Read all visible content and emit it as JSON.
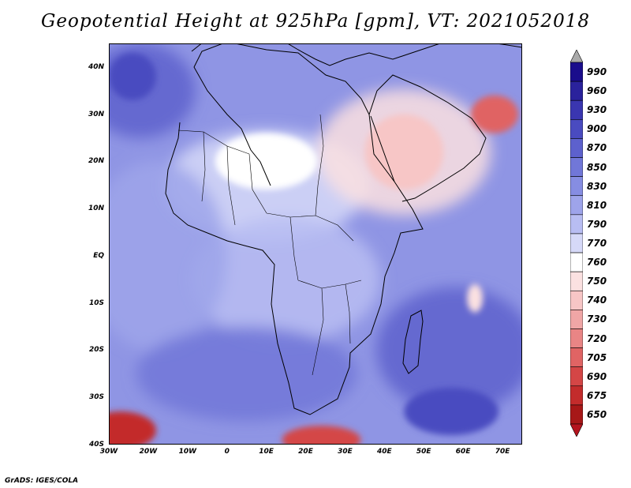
{
  "title": "Geopotential Height at 925hPa [gpm], VT: 2021052018",
  "credit": "GrADS: IGES/COLA",
  "map": {
    "variable": "Geopotential Height",
    "level": "925hPa",
    "units": "gpm",
    "valid_time": "2021052018",
    "lon_range": [
      -30,
      75
    ],
    "lat_range": [
      -40,
      45
    ],
    "background_color": "#8f95e4",
    "land_outline_color": "#000000",
    "lat_labels": [
      {
        "lat": 40,
        "text": "40N"
      },
      {
        "lat": 30,
        "text": "30N"
      },
      {
        "lat": 20,
        "text": "20N"
      },
      {
        "lat": 10,
        "text": "10N"
      },
      {
        "lat": 0,
        "text": "EQ"
      },
      {
        "lat": -10,
        "text": "10S"
      },
      {
        "lat": -20,
        "text": "20S"
      },
      {
        "lat": -30,
        "text": "30S"
      },
      {
        "lat": -40,
        "text": "40S"
      }
    ],
    "lon_labels": [
      {
        "lon": -30,
        "text": "30W"
      },
      {
        "lon": -20,
        "text": "20W"
      },
      {
        "lon": -10,
        "text": "10W"
      },
      {
        "lon": 0,
        "text": "0"
      },
      {
        "lon": 10,
        "text": "10E"
      },
      {
        "lon": 20,
        "text": "20E"
      },
      {
        "lon": 30,
        "text": "30E"
      },
      {
        "lon": 40,
        "text": "40E"
      },
      {
        "lon": 50,
        "text": "50E"
      },
      {
        "lon": 60,
        "text": "60E"
      },
      {
        "lon": 70,
        "text": "70E"
      }
    ],
    "features": [
      {
        "name": "low-height-south-atlantic",
        "level": 675,
        "lon": -27,
        "lat": -37,
        "rx": 9,
        "ry": 4
      },
      {
        "name": "low-height-south-africa-coast",
        "level": 690,
        "lon": 24,
        "lat": -39,
        "rx": 10,
        "ry": 3
      },
      {
        "name": "high-height-southwest-indian",
        "level": 900,
        "lon": 57,
        "lat": -33,
        "rx": 12,
        "ry": 5
      },
      {
        "name": "high-height-north-atlantic",
        "level": 900,
        "lon": -24,
        "lat": 38,
        "rx": 6,
        "ry": 5
      },
      {
        "name": "low-height-arabia",
        "level": 740,
        "lon": 45,
        "lat": 22,
        "rx": 10,
        "ry": 8
      },
      {
        "name": "low-height-iran-pakistan",
        "level": 705,
        "lon": 68,
        "lat": 30,
        "rx": 6,
        "ry": 4
      },
      {
        "name": "low-height-sahara",
        "level": 760,
        "lon": 10,
        "lat": 20,
        "rx": 13,
        "ry": 6
      },
      {
        "name": "low-height-madagascar-east",
        "level": 750,
        "lon": 63,
        "lat": -9,
        "rx": 2,
        "ry": 3
      }
    ]
  },
  "colorbar": {
    "levels": [
      {
        "value": "990",
        "color": "#1a0d8c"
      },
      {
        "value": "960",
        "color": "#2a229c"
      },
      {
        "value": "930",
        "color": "#3a36b0"
      },
      {
        "value": "900",
        "color": "#4a4bc0"
      },
      {
        "value": "870",
        "color": "#5d61cd"
      },
      {
        "value": "850",
        "color": "#7177d8"
      },
      {
        "value": "830",
        "color": "#868de2"
      },
      {
        "value": "810",
        "color": "#9ea4ea"
      },
      {
        "value": "790",
        "color": "#b8bdf2"
      },
      {
        "value": "770",
        "color": "#d6d9f8"
      },
      {
        "value": "760",
        "color": "#ffffff"
      },
      {
        "value": "750",
        "color": "#fbe1e1"
      },
      {
        "value": "740",
        "color": "#f7c6c6"
      },
      {
        "value": "730",
        "color": "#f0a6a6"
      },
      {
        "value": "720",
        "color": "#e98585"
      },
      {
        "value": "705",
        "color": "#e06464"
      },
      {
        "value": "690",
        "color": "#d44646"
      },
      {
        "value": "675",
        "color": "#c32c2c"
      },
      {
        "value": "650",
        "color": "#a71818"
      }
    ],
    "over_color": "#a9a9a9",
    "under_color": "#b4141e"
  }
}
